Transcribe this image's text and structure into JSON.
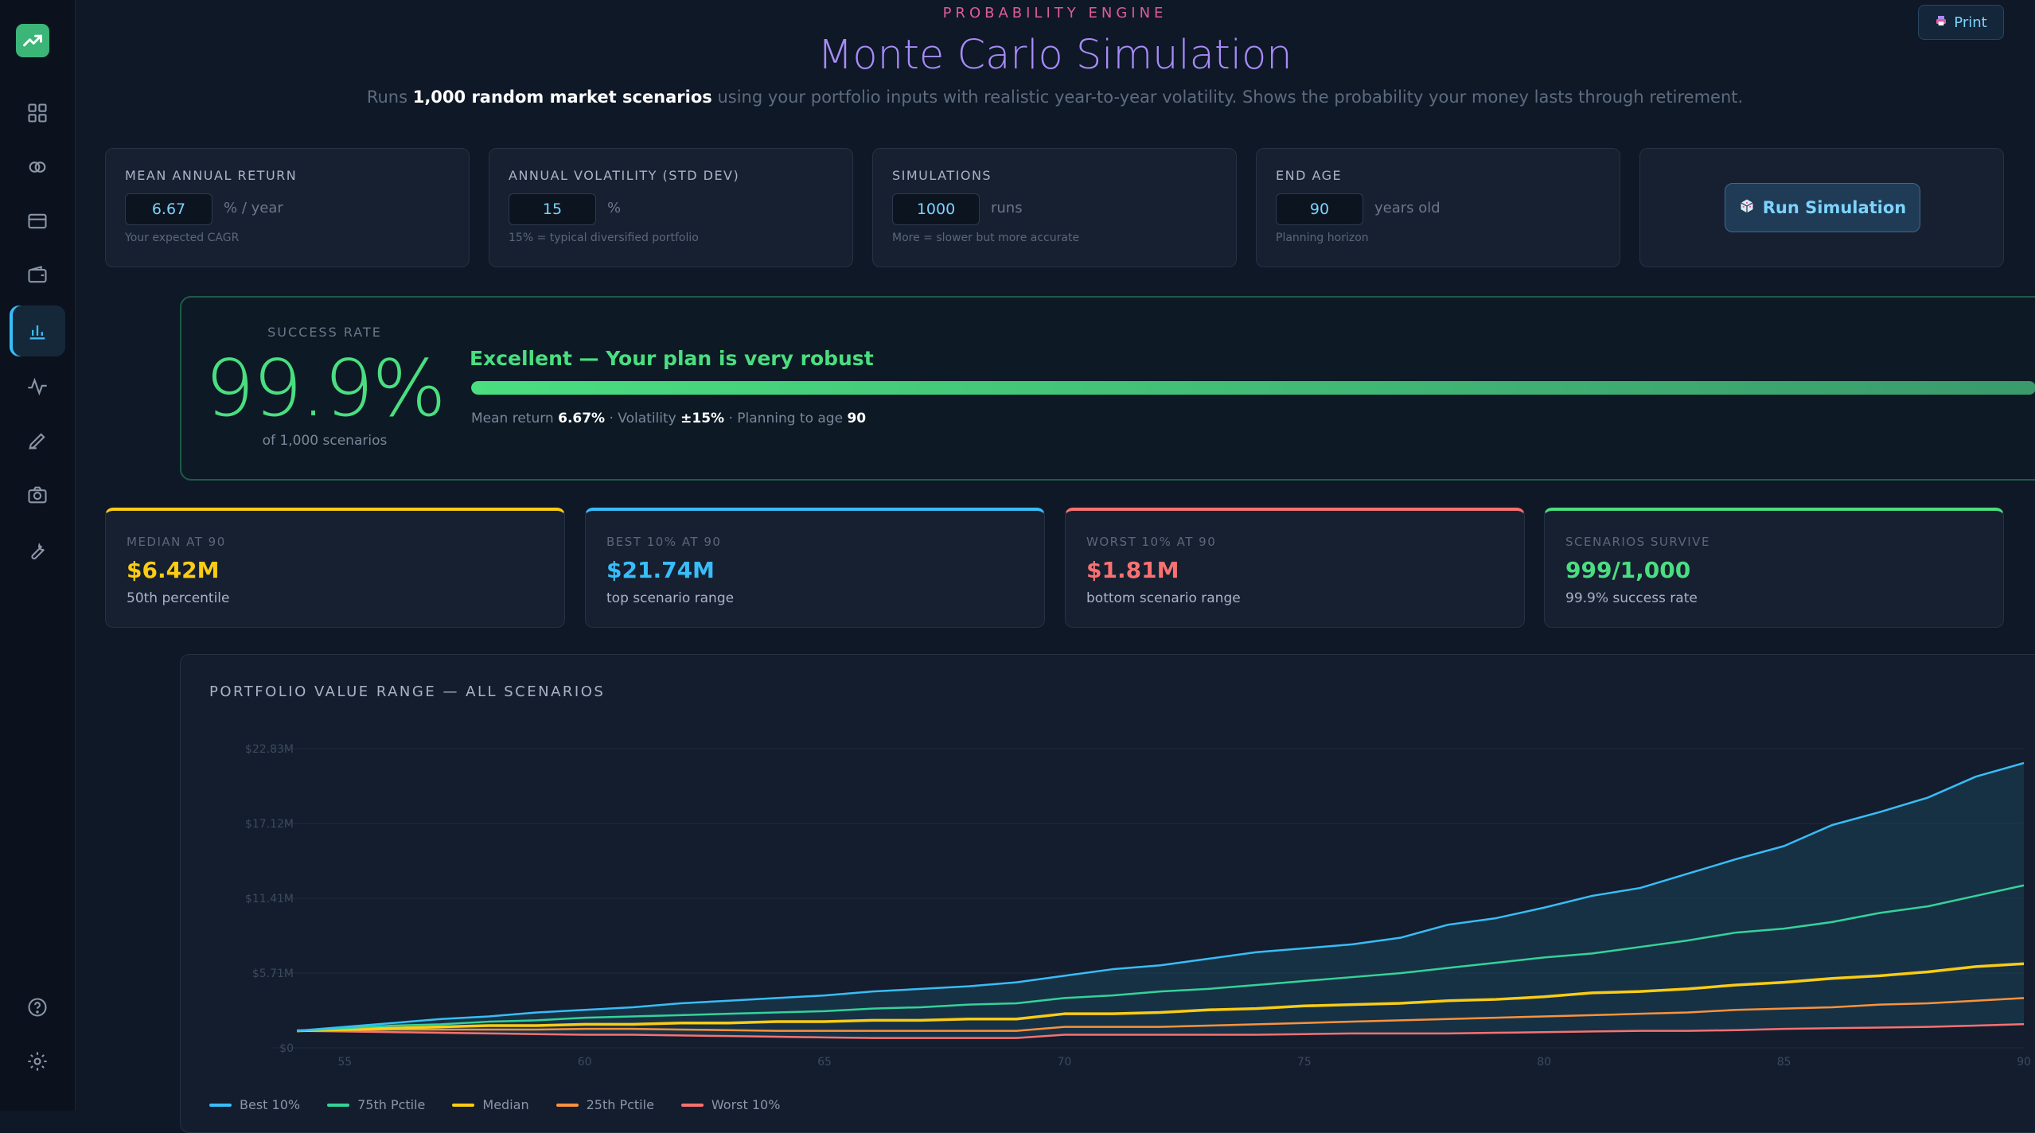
{
  "header": {
    "eyebrow": "PROBABILITY ENGINE",
    "title": "Monte Carlo Simulation",
    "subtitle_pre": "Runs ",
    "subtitle_bold": "1,000 random market scenarios",
    "subtitle_post": " using your portfolio inputs with realistic year-to-year volatility. Shows the probability your money lasts through retirement.",
    "print_label": "Print"
  },
  "sidebar": {
    "items": [
      {
        "icon": "dashboard-icon"
      },
      {
        "icon": "link-icon"
      },
      {
        "icon": "credit-card-icon"
      },
      {
        "icon": "wallet-icon"
      },
      {
        "icon": "bar-chart-icon",
        "active": true
      },
      {
        "icon": "activity-icon"
      },
      {
        "icon": "pen-icon"
      },
      {
        "icon": "camera-icon"
      },
      {
        "icon": "wrench-icon"
      }
    ],
    "bottom": [
      {
        "icon": "help-icon"
      },
      {
        "icon": "settings-icon"
      }
    ]
  },
  "inputs": [
    {
      "label": "MEAN ANNUAL RETURN",
      "value": "6.67",
      "unit": "% / year",
      "hint": "Your expected CAGR"
    },
    {
      "label": "ANNUAL VOLATILITY (STD DEV)",
      "value": "15",
      "unit": "%",
      "hint": "15% = typical diversified portfolio"
    },
    {
      "label": "SIMULATIONS",
      "value": "1000",
      "unit": "runs",
      "hint": "More = slower but more accurate"
    },
    {
      "label": "END AGE",
      "value": "90",
      "unit": "years old",
      "hint": "Planning horizon"
    }
  ],
  "run_button": "Run Simulation",
  "success": {
    "label": "SUCCESS RATE",
    "value": "99.9%",
    "sub": "of 1,000 scenarios",
    "verdict": "Excellent — Your plan is very robust",
    "progress": 0.999,
    "mean_label": "Mean return ",
    "mean_value": "6.67%",
    "vol_label": " · Volatility ",
    "vol_value": "±15%",
    "age_label": " · Planning to age ",
    "age_value": "90"
  },
  "metrics": [
    {
      "label": "MEDIAN AT 90",
      "value": "$6.42M",
      "sub": "50th percentile",
      "color": "#facc15"
    },
    {
      "label": "BEST 10% AT 90",
      "value": "$21.74M",
      "sub": "top scenario range",
      "color": "#38bdf8"
    },
    {
      "label": "WORST 10% AT 90",
      "value": "$1.81M",
      "sub": "bottom scenario range",
      "color": "#f87171"
    },
    {
      "label": "SCENARIOS SURVIVE",
      "value": "999/1,000",
      "sub": "99.9% success rate",
      "color": "#4ade80"
    }
  ],
  "chart_data": {
    "type": "line",
    "title": "PORTFOLIO VALUE RANGE — ALL SCENARIOS",
    "xlim": [
      54,
      90
    ],
    "ylim": [
      0,
      22.83
    ],
    "y_ticks": [
      {
        "v": 22.83,
        "label": "$22.83M"
      },
      {
        "v": 17.12,
        "label": "$17.12M"
      },
      {
        "v": 11.41,
        "label": "$11.41M"
      },
      {
        "v": 5.71,
        "label": "$5.71M"
      },
      {
        "v": 0,
        "label": "$0"
      }
    ],
    "x_ticks": [
      55,
      60,
      65,
      70,
      75,
      80,
      85,
      90
    ],
    "x": [
      54,
      55,
      56,
      57,
      58,
      59,
      60,
      61,
      62,
      63,
      64,
      65,
      66,
      67,
      68,
      69,
      70,
      71,
      72,
      73,
      74,
      75,
      76,
      77,
      78,
      79,
      80,
      81,
      82,
      83,
      84,
      85,
      86,
      87,
      88,
      89,
      90
    ],
    "series": [
      {
        "name": "Best 10%",
        "color": "#38bdf8",
        "values": [
          1.3,
          1.6,
          1.9,
          2.2,
          2.4,
          2.7,
          2.9,
          3.1,
          3.4,
          3.6,
          3.8,
          4.0,
          4.3,
          4.5,
          4.7,
          5.0,
          5.5,
          6.0,
          6.3,
          6.8,
          7.3,
          7.6,
          7.9,
          8.4,
          9.4,
          9.9,
          10.7,
          11.6,
          12.2,
          13.3,
          14.4,
          15.4,
          17.0,
          18.0,
          19.1,
          20.7,
          21.74
        ]
      },
      {
        "name": "75th Pctile",
        "color": "#34d399",
        "values": [
          1.3,
          1.5,
          1.7,
          1.8,
          2.0,
          2.1,
          2.3,
          2.4,
          2.5,
          2.6,
          2.7,
          2.8,
          3.0,
          3.1,
          3.3,
          3.4,
          3.8,
          4.0,
          4.3,
          4.5,
          4.8,
          5.1,
          5.4,
          5.7,
          6.1,
          6.5,
          6.9,
          7.2,
          7.7,
          8.2,
          8.8,
          9.1,
          9.6,
          10.3,
          10.8,
          11.6,
          12.4
        ]
      },
      {
        "name": "Median",
        "color": "#facc15",
        "values": [
          1.3,
          1.4,
          1.5,
          1.6,
          1.7,
          1.7,
          1.8,
          1.8,
          1.9,
          1.9,
          2.0,
          2.0,
          2.1,
          2.1,
          2.2,
          2.2,
          2.6,
          2.6,
          2.7,
          2.9,
          3.0,
          3.2,
          3.3,
          3.4,
          3.6,
          3.7,
          3.9,
          4.2,
          4.3,
          4.5,
          4.8,
          5.0,
          5.3,
          5.5,
          5.8,
          6.2,
          6.42
        ]
      },
      {
        "name": "25th Pctile",
        "color": "#fb923c",
        "values": [
          1.3,
          1.35,
          1.4,
          1.4,
          1.4,
          1.4,
          1.45,
          1.45,
          1.4,
          1.35,
          1.3,
          1.3,
          1.3,
          1.3,
          1.3,
          1.3,
          1.6,
          1.6,
          1.6,
          1.7,
          1.8,
          1.9,
          2.0,
          2.1,
          2.2,
          2.3,
          2.4,
          2.5,
          2.6,
          2.7,
          2.9,
          3.0,
          3.1,
          3.3,
          3.4,
          3.6,
          3.8
        ]
      },
      {
        "name": "Worst 10%",
        "color": "#f87171",
        "values": [
          1.3,
          1.25,
          1.2,
          1.15,
          1.1,
          1.05,
          1.0,
          1.0,
          0.95,
          0.9,
          0.85,
          0.8,
          0.75,
          0.75,
          0.75,
          0.75,
          1.0,
          1.0,
          1.0,
          1.0,
          1.0,
          1.05,
          1.1,
          1.1,
          1.1,
          1.15,
          1.2,
          1.25,
          1.3,
          1.3,
          1.35,
          1.45,
          1.5,
          1.55,
          1.6,
          1.7,
          1.81
        ]
      }
    ]
  }
}
